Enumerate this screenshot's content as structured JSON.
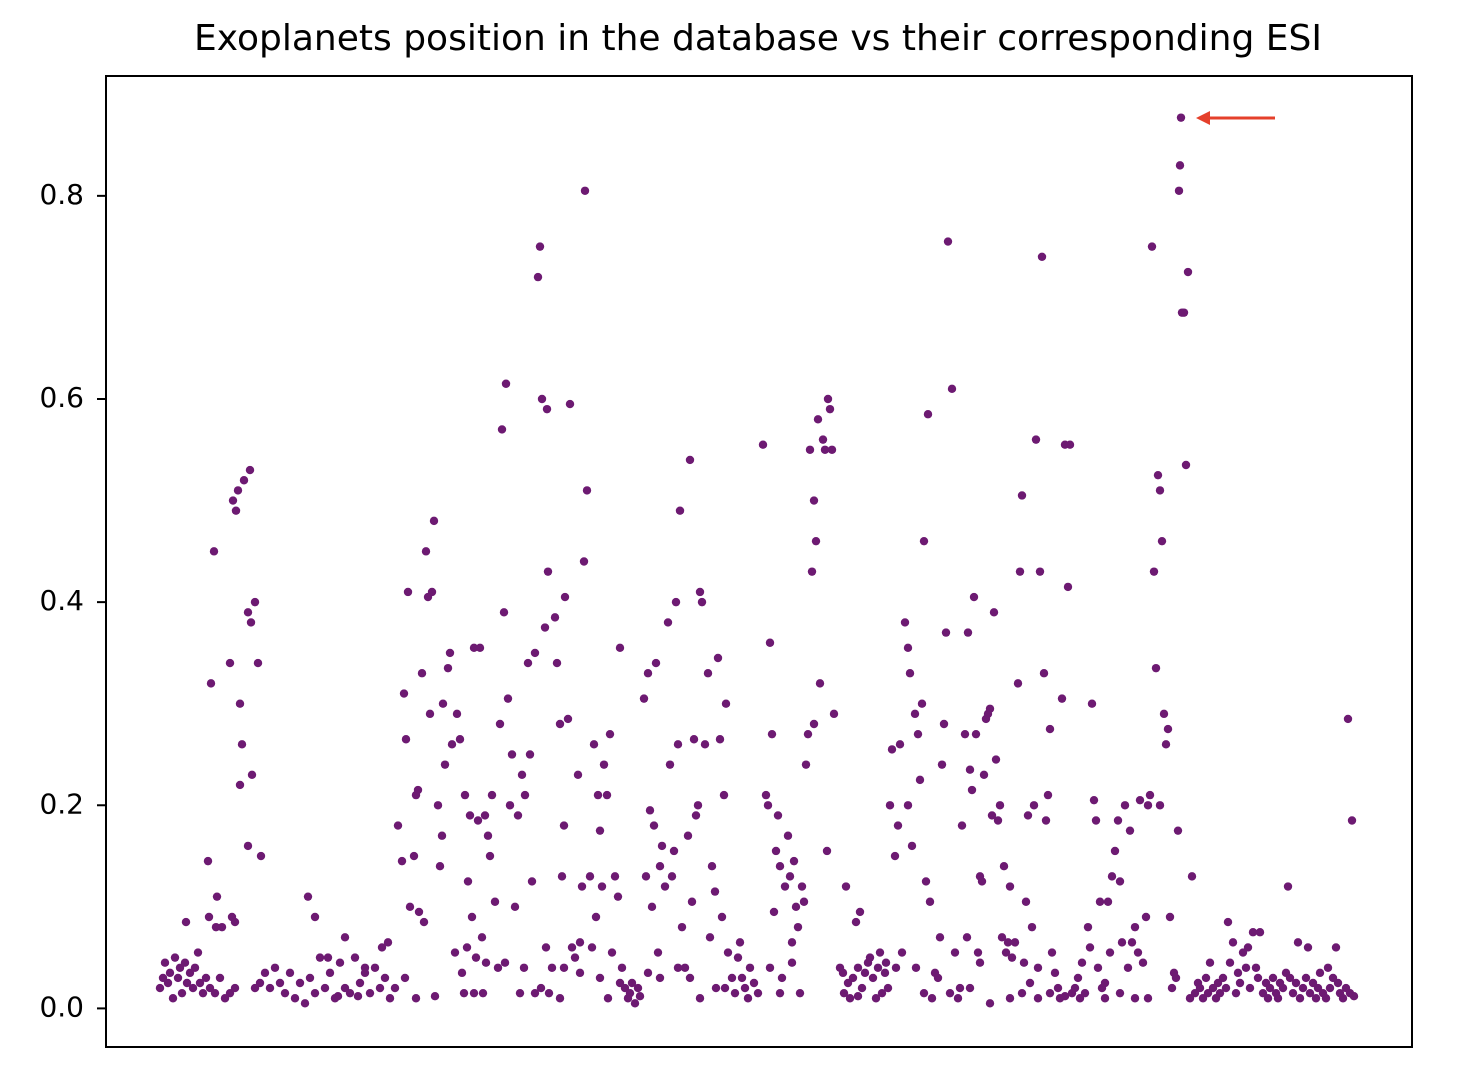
{
  "chart_data": {
    "type": "scatter",
    "title": "Exoplanets position in the database vs their corresponding ESI",
    "color": "#6d1a72",
    "xlim": [
      -54,
      1252
    ],
    "ylim": [
      -0.038,
      0.918
    ],
    "yticks": [
      {
        "value": 0,
        "label": "0.0"
      },
      0.2,
      0.4,
      0.6,
      0.8
    ],
    "grid": false,
    "series": [
      {
        "x": [
          0,
          3,
          5,
          8,
          10,
          13,
          15,
          18,
          20,
          22,
          25,
          27,
          30,
          33,
          35,
          38,
          40,
          43,
          46,
          26,
          50,
          55,
          60,
          65,
          70,
          75,
          48,
          51,
          54,
          57,
          49,
          56,
          62,
          70,
          73,
          76,
          78,
          80,
          82,
          80,
          84,
          88,
          90,
          88,
          92,
          91,
          95,
          98,
          101,
          72,
          75,
          95,
          100,
          105,
          110,
          115,
          120,
          125,
          130,
          135,
          140,
          145,
          150,
          155,
          160,
          165,
          170,
          175,
          180,
          185,
          190,
          195,
          200,
          205,
          210,
          215,
          220,
          225,
          230,
          148,
          155,
          185,
          168,
          205,
          178,
          198,
          222,
          228,
          235,
          238,
          242,
          244,
          246,
          248,
          250,
          254,
          256,
          258,
          259,
          262,
          264,
          266,
          268,
          270,
          272,
          274,
          275,
          278,
          280,
          282,
          285,
          288,
          290,
          292,
          295,
          297,
          300,
          245,
          256,
          283,
          302,
          305,
          308,
          310,
          312,
          314,
          316,
          318,
          320,
          323,
          325,
          328,
          330,
          332,
          335,
          338,
          340,
          342,
          344,
          346,
          348,
          350,
          352,
          355,
          358,
          362,
          365,
          368,
          370,
          372,
          375,
          378,
          380,
          382,
          385,
          387,
          388,
          392,
          395,
          397,
          400,
          304,
          314,
          326,
          345,
          360,
          364,
          375,
          381,
          386,
          389,
          322,
          307,
          402,
          404,
          405,
          408,
          410,
          412,
          415,
          418,
          420,
          422,
          424,
          425,
          427,
          430,
          432,
          434,
          436,
          438,
          440,
          442,
          444,
          447,
          450,
          452,
          455,
          458,
          460,
          462,
          465,
          468,
          470,
          475,
          478,
          480,
          400,
          404,
          420,
          440,
          448,
          460,
          472,
          484,
          486,
          488,
          490,
          492,
          494,
          496,
          498,
          500,
          502,
          505,
          508,
          510,
          512,
          514,
          516,
          518,
          520,
          522,
          525,
          528,
          530,
          532,
          534,
          536,
          538,
          540,
          542,
          545,
          548,
          550,
          552,
          555,
          558,
          560,
          562,
          564,
          566,
          568,
          488,
          500,
          518,
          530,
          540,
          556,
          565,
          572,
          575,
          578,
          580,
          582,
          585,
          588,
          590,
          594,
          598,
          603,
          606,
          608,
          610,
          612,
          614,
          616,
          618,
          620,
          622,
          625,
          628,
          630,
          632,
          634,
          636,
          638,
          640,
          642,
          644,
          646,
          648,
          650,
          652,
          654,
          656,
          658,
          660,
          663,
          665,
          667,
          668,
          670,
          672,
          674,
          610,
          620,
          632,
          654,
          680,
          683,
          686,
          688,
          690,
          693,
          696,
          698,
          700,
          702,
          705,
          708,
          710,
          713,
          716,
          718,
          720,
          722,
          725,
          728,
          730,
          732,
          735,
          738,
          740,
          742,
          745,
          748,
          684,
          698,
          726,
          736,
          748,
          750,
          752,
          755,
          758,
          760,
          762,
          764,
          766,
          768,
          770,
          772,
          775,
          778,
          780,
          782,
          784,
          786,
          788,
          790,
          792,
          795,
          798,
          800,
          802,
          805,
          807,
          808,
          810,
          812,
          814,
          816,
          818,
          820,
          822,
          824,
          826,
          828,
          830,
          832,
          834,
          836,
          838,
          840,
          756,
          764,
          810,
          820,
          830,
          842,
          844,
          846,
          848,
          850,
          852,
          855,
          858,
          860,
          862,
          864,
          866,
          868,
          870,
          872,
          874,
          876,
          878,
          880,
          882,
          884,
          886,
          888,
          890,
          892,
          895,
          898,
          900,
          902,
          905,
          908,
          910,
          912,
          915,
          918,
          920,
          922,
          925,
          928,
          930,
          932,
          934,
          936,
          938,
          850,
          862,
          878,
          890,
          905,
          940,
          942,
          945,
          948,
          950,
          952,
          955,
          958,
          960,
          962,
          965,
          968,
          970,
          972,
          975,
          978,
          980,
          983,
          986,
          988,
          990,
          992,
          994,
          996,
          998,
          1000,
          1002,
          1004,
          1006,
          1008,
          1010,
          1012,
          1014,
          1016,
          1018,
          1019,
          1020,
          1021,
          1022,
          1024,
          1026,
          1028,
          1030,
          1032,
          945,
          960,
          975,
          1000,
          988,
          1035,
          1038,
          1040,
          1043,
          1046,
          1048,
          1050,
          1053,
          1056,
          1058,
          1060,
          1063,
          1066,
          1068,
          1070,
          1073,
          1076,
          1078,
          1080,
          1083,
          1086,
          1088,
          1090,
          1093,
          1096,
          1098,
          1100,
          1103,
          1106,
          1108,
          1110,
          1113,
          1116,
          1118,
          1120,
          1123,
          1126,
          1128,
          1130,
          1133,
          1136,
          1138,
          1140,
          1143,
          1146,
          1148,
          1150,
          1153,
          1156,
          1158,
          1160,
          1163,
          1166,
          1168,
          1170,
          1173,
          1176,
          1178,
          1180,
          1183,
          1186,
          1188,
          1190,
          1192,
          1194
        ],
        "values": [
          0.02,
          0.03,
          0.045,
          0.025,
          0.035,
          0.01,
          0.05,
          0.03,
          0.04,
          0.015,
          0.045,
          0.025,
          0.035,
          0.02,
          0.04,
          0.055,
          0.025,
          0.015,
          0.03,
          0.085,
          0.02,
          0.015,
          0.03,
          0.01,
          0.015,
          0.02,
          0.145,
          0.32,
          0.45,
          0.11,
          0.09,
          0.08,
          0.08,
          0.34,
          0.5,
          0.49,
          0.51,
          0.3,
          0.26,
          0.22,
          0.52,
          0.39,
          0.53,
          0.16,
          0.23,
          0.38,
          0.4,
          0.34,
          0.15,
          0.09,
          0.085,
          0.02,
          0.025,
          0.035,
          0.02,
          0.04,
          0.025,
          0.015,
          0.035,
          0.01,
          0.025,
          0.005,
          0.03,
          0.015,
          0.05,
          0.02,
          0.035,
          0.01,
          0.045,
          0.02,
          0.015,
          0.05,
          0.025,
          0.035,
          0.015,
          0.04,
          0.02,
          0.03,
          0.01,
          0.11,
          0.09,
          0.07,
          0.05,
          0.04,
          0.012,
          0.012,
          0.06,
          0.065,
          0.02,
          0.18,
          0.145,
          0.31,
          0.265,
          0.41,
          0.1,
          0.15,
          0.21,
          0.215,
          0.095,
          0.33,
          0.085,
          0.45,
          0.405,
          0.29,
          0.41,
          0.48,
          0.012,
          0.2,
          0.14,
          0.17,
          0.24,
          0.335,
          0.35,
          0.26,
          0.055,
          0.29,
          0.265,
          0.03,
          0.01,
          0.3,
          0.035,
          0.21,
          0.125,
          0.19,
          0.09,
          0.355,
          0.05,
          0.185,
          0.355,
          0.015,
          0.19,
          0.17,
          0.15,
          0.21,
          0.105,
          0.04,
          0.28,
          0.57,
          0.39,
          0.615,
          0.305,
          0.2,
          0.25,
          0.1,
          0.19,
          0.23,
          0.21,
          0.34,
          0.25,
          0.125,
          0.35,
          0.72,
          0.75,
          0.6,
          0.375,
          0.59,
          0.43,
          0.04,
          0.385,
          0.34,
          0.28,
          0.015,
          0.015,
          0.045,
          0.045,
          0.015,
          0.04,
          0.015,
          0.02,
          0.06,
          0.015,
          0.07,
          0.06,
          0.13,
          0.18,
          0.405,
          0.285,
          0.595,
          0.06,
          0.05,
          0.23,
          0.065,
          0.12,
          0.44,
          0.805,
          0.51,
          0.13,
          0.06,
          0.26,
          0.09,
          0.21,
          0.175,
          0.12,
          0.24,
          0.21,
          0.27,
          0.055,
          0.13,
          0.11,
          0.355,
          0.04,
          0.02,
          0.01,
          0.015,
          0.005,
          0.02,
          0.012,
          0.01,
          0.04,
          0.035,
          0.03,
          0.01,
          0.025,
          0.025,
          0.305,
          0.13,
          0.33,
          0.195,
          0.1,
          0.18,
          0.34,
          0.055,
          0.14,
          0.16,
          0.12,
          0.38,
          0.24,
          0.13,
          0.155,
          0.4,
          0.26,
          0.49,
          0.08,
          0.04,
          0.17,
          0.54,
          0.105,
          0.265,
          0.19,
          0.2,
          0.41,
          0.4,
          0.26,
          0.33,
          0.07,
          0.14,
          0.115,
          0.345,
          0.265,
          0.09,
          0.21,
          0.3,
          0.055,
          0.035,
          0.03,
          0.04,
          0.03,
          0.01,
          0.02,
          0.02,
          0.03,
          0.015,
          0.05,
          0.065,
          0.03,
          0.02,
          0.01,
          0.04,
          0.025,
          0.015,
          0.555,
          0.21,
          0.2,
          0.36,
          0.27,
          0.095,
          0.155,
          0.19,
          0.14,
          0.03,
          0.12,
          0.17,
          0.13,
          0.045,
          0.145,
          0.1,
          0.08,
          0.015,
          0.12,
          0.105,
          0.24,
          0.27,
          0.55,
          0.43,
          0.5,
          0.46,
          0.58,
          0.32,
          0.56,
          0.55,
          0.155,
          0.6,
          0.59,
          0.55,
          0.29,
          0.04,
          0.015,
          0.065,
          0.28,
          0.04,
          0.035,
          0.12,
          0.025,
          0.01,
          0.03,
          0.085,
          0.04,
          0.095,
          0.02,
          0.035,
          0.045,
          0.05,
          0.03,
          0.01,
          0.04,
          0.055,
          0.015,
          0.035,
          0.02,
          0.2,
          0.255,
          0.15,
          0.18,
          0.26,
          0.055,
          0.38,
          0.2,
          0.015,
          0.012,
          0.045,
          0.04,
          0.355,
          0.33,
          0.16,
          0.29,
          0.27,
          0.225,
          0.3,
          0.46,
          0.125,
          0.585,
          0.105,
          0.01,
          0.035,
          0.03,
          0.07,
          0.24,
          0.28,
          0.37,
          0.755,
          0.015,
          0.61,
          0.055,
          0.01,
          0.02,
          0.18,
          0.27,
          0.07,
          0.37,
          0.235,
          0.215,
          0.405,
          0.27,
          0.055,
          0.13,
          0.125,
          0.23,
          0.285,
          0.29,
          0.295,
          0.19,
          0.39,
          0.245,
          0.185,
          0.2,
          0.04,
          0.015,
          0.02,
          0.045,
          0.005,
          0.07,
          0.14,
          0.055,
          0.065,
          0.12,
          0.05,
          0.065,
          0.32,
          0.43,
          0.505,
          0.045,
          0.105,
          0.19,
          0.025,
          0.08,
          0.2,
          0.56,
          0.04,
          0.43,
          0.74,
          0.33,
          0.185,
          0.21,
          0.275,
          0.055,
          0.035,
          0.02,
          0.01,
          0.305,
          0.555,
          0.415,
          0.555,
          0.015,
          0.02,
          0.03,
          0.01,
          0.045,
          0.015,
          0.08,
          0.06,
          0.3,
          0.205,
          0.185,
          0.04,
          0.01,
          0.015,
          0.01,
          0.015,
          0.012,
          0.105,
          0.02,
          0.025,
          0.105,
          0.055,
          0.13,
          0.155,
          0.185,
          0.125,
          0.065,
          0.2,
          0.04,
          0.175,
          0.065,
          0.08,
          0.055,
          0.205,
          0.045,
          0.09,
          0.01,
          0.21,
          0.75,
          0.43,
          0.335,
          0.525,
          0.51,
          0.46,
          0.29,
          0.26,
          0.275,
          0.09,
          0.02,
          0.035,
          0.03,
          0.175,
          0.805,
          0.83,
          0.877,
          0.685,
          0.685,
          0.535,
          0.725,
          0.01,
          0.13,
          0.01,
          0.015,
          0.01,
          0.2,
          0.2,
          0.015,
          0.025,
          0.02,
          0.01,
          0.03,
          0.015,
          0.045,
          0.02,
          0.01,
          0.025,
          0.015,
          0.03,
          0.02,
          0.085,
          0.045,
          0.065,
          0.015,
          0.035,
          0.025,
          0.055,
          0.04,
          0.06,
          0.02,
          0.075,
          0.04,
          0.03,
          0.075,
          0.015,
          0.025,
          0.01,
          0.02,
          0.03,
          0.015,
          0.01,
          0.025,
          0.02,
          0.035,
          0.12,
          0.03,
          0.015,
          0.025,
          0.065,
          0.01,
          0.02,
          0.03,
          0.06,
          0.015,
          0.025,
          0.01,
          0.02,
          0.035,
          0.015,
          0.01,
          0.04,
          0.02,
          0.03,
          0.06,
          0.025,
          0.015,
          0.01,
          0.02,
          0.285,
          0.015,
          0.185,
          0.012
        ]
      }
    ]
  }
}
